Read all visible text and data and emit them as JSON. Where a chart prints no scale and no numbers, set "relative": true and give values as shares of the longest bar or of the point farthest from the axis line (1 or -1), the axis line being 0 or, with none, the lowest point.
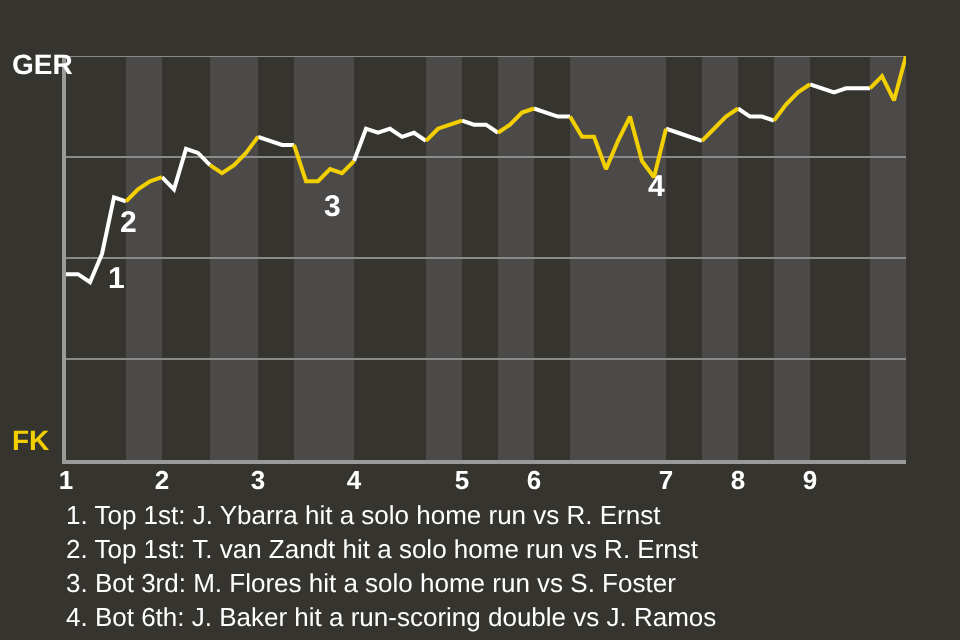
{
  "chart_data": {
    "type": "line",
    "relative": true,
    "categories": [
      "1",
      null,
      null,
      null,
      null,
      null,
      null,
      null,
      "2",
      null,
      null,
      null,
      null,
      null,
      null,
      null,
      "3",
      null,
      null,
      null,
      null,
      null,
      null,
      null,
      "4",
      null,
      null,
      null,
      null,
      null,
      null,
      null,
      null,
      "5",
      null,
      null,
      null,
      null,
      null,
      "6",
      null,
      null,
      null,
      null,
      null,
      null,
      null,
      null,
      null,
      null,
      "7",
      null,
      null,
      null,
      null,
      null,
      "8",
      null,
      null,
      null,
      null,
      null,
      "9",
      null,
      null,
      null,
      null,
      null,
      null,
      null,
      null
    ],
    "marker": "none",
    "line_style": "solid",
    "ref_lines": [
      {
        "axis": "y",
        "value": 0.25,
        "color": "#8a8a8a"
      },
      {
        "axis": "y",
        "value": 0.5,
        "color": "#8a8a8a"
      },
      {
        "axis": "y",
        "value": 0.75,
        "color": "#8a8a8a"
      },
      {
        "axis": "y",
        "value": 1,
        "color": "#8a8a8a"
      }
    ],
    "series": [
      {
        "color": "#ffffff",
        "values": [
          0.46,
          0.46,
          0.44,
          0.51,
          0.65,
          0.64,
          null,
          null,
          0.7,
          0.67,
          0.77,
          0.76,
          0.73,
          null,
          null,
          null,
          0.8,
          0.79,
          0.78,
          0.78,
          null,
          null,
          null,
          null,
          0.74,
          0.82,
          0.81,
          0.82,
          0.8,
          0.81,
          0.79,
          null,
          null,
          0.84,
          0.83,
          0.83,
          0.81,
          null,
          null,
          0.87,
          0.86,
          0.85,
          0.85,
          null,
          null,
          null,
          null,
          null,
          null,
          null,
          0.82,
          0.81,
          0.8,
          0.79,
          null,
          null,
          0.87,
          0.85,
          0.85,
          0.84,
          null,
          null,
          0.93,
          0.92,
          0.91,
          0.92,
          0.92,
          0.92,
          null,
          null,
          null
        ]
      },
      {
        "color": "#f2cf00",
        "values": [
          null,
          null,
          null,
          null,
          null,
          0.64,
          0.67,
          0.69,
          0.7,
          null,
          null,
          null,
          0.73,
          0.71,
          0.73,
          0.76,
          0.8,
          null,
          null,
          0.78,
          0.69,
          0.69,
          0.72,
          0.71,
          0.74,
          null,
          null,
          null,
          null,
          null,
          0.79,
          0.82,
          0.83,
          0.84,
          null,
          null,
          0.81,
          0.83,
          0.86,
          0.87,
          null,
          null,
          0.85,
          0.8,
          0.8,
          0.72,
          0.79,
          0.85,
          0.74,
          0.7,
          0.82,
          null,
          null,
          0.79,
          0.82,
          0.85,
          0.87,
          null,
          null,
          0.84,
          0.88,
          0.91,
          0.93,
          null,
          null,
          null,
          null,
          0.92,
          0.95,
          0.89,
          1.0
        ]
      }
    ],
    "annotations": [
      "GER",
      "FK",
      {
        "text": "1",
        "y": 0.51
      },
      {
        "text": "2",
        "y": 0.65
      },
      {
        "text": "3",
        "y": 0.69
      },
      {
        "text": "4",
        "y": 0.74
      },
      "1. Top 1st: J. Ybarra hit a solo home run vs R. Ernst",
      "2. Top 1st: T. van Zandt hit a solo home run vs R. Ernst",
      "3. Bot 3rd: M. Flores hit a solo home run vs S. Foster",
      "4. Bot 6th: J. Baker hit a run-scoring double vs J. Ramos"
    ]
  }
}
